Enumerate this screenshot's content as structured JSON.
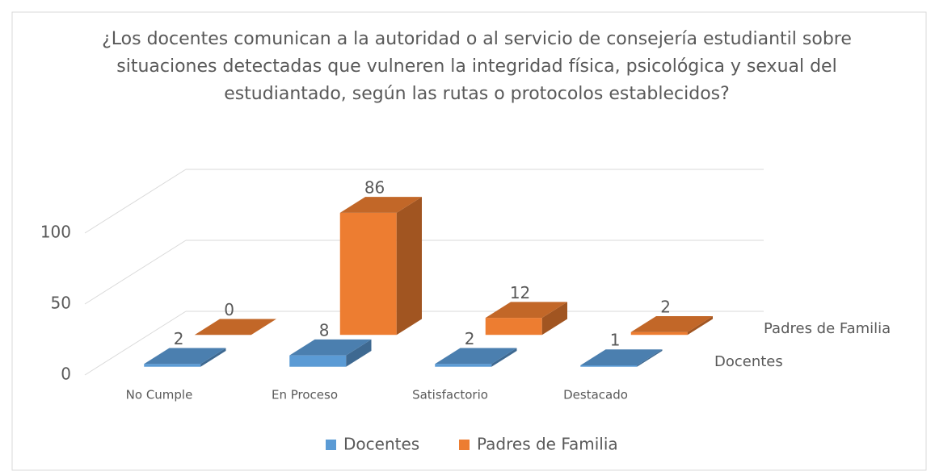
{
  "chart_data": {
    "type": "bar3d",
    "title": "¿Los docentes comunican a la autoridad o al servicio de consejería estudiantil sobre situaciones detectadas que vulneren la integridad física, psicológica y sexual del estudiantado, según las rutas o protocolos establecidos?",
    "categories": [
      "No Cumple",
      "En Proceso",
      "Satisfactorio",
      "Destacado"
    ],
    "series": [
      {
        "name": "Docentes",
        "color": "#5b9bd5",
        "values": [
          2,
          8,
          2,
          1
        ]
      },
      {
        "name": "Padres de Familia",
        "color": "#ed7d31",
        "values": [
          0,
          86,
          12,
          2
        ]
      }
    ],
    "ylim": [
      0,
      100
    ],
    "yticks": [
      0,
      50,
      100
    ],
    "grid": true,
    "legend": "bottom"
  }
}
